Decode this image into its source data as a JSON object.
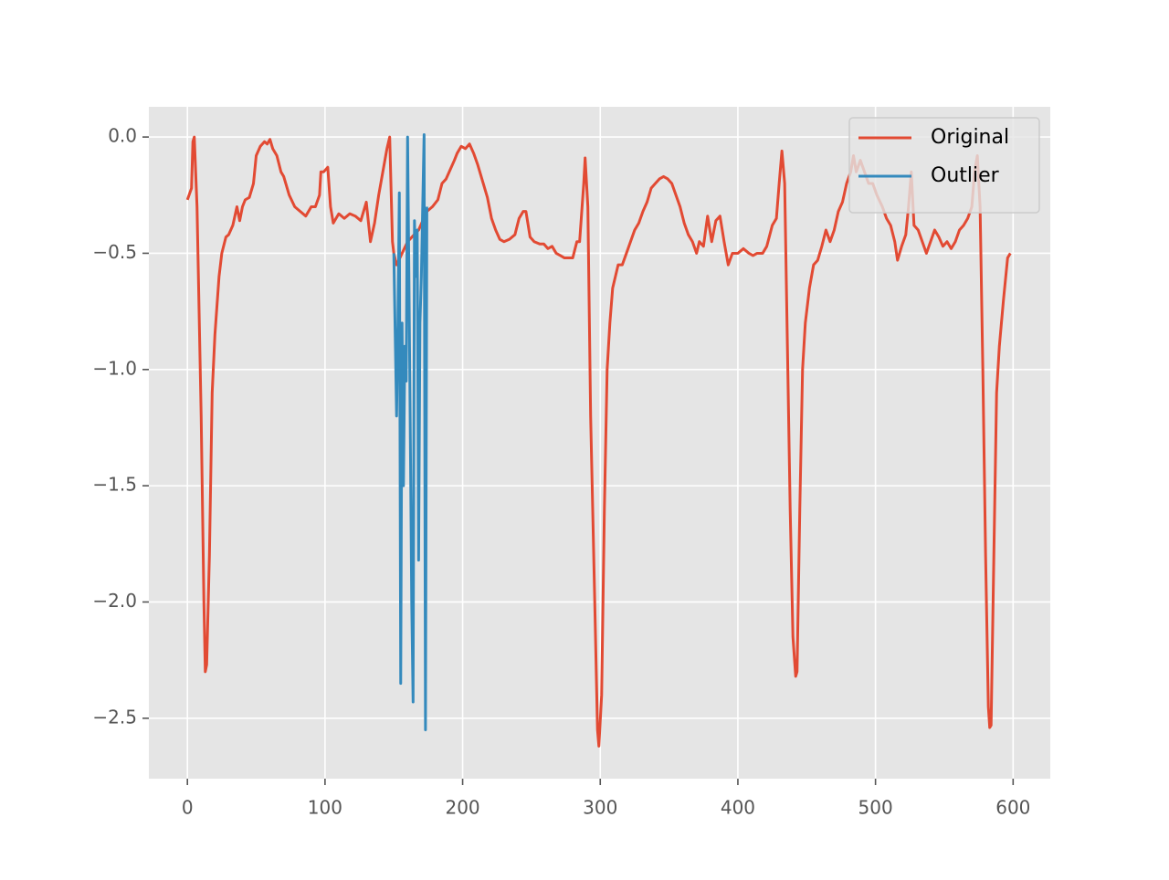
{
  "chart_data": {
    "type": "line",
    "xlim": [
      -28,
      627
    ],
    "ylim": [
      -2.76,
      0.13
    ],
    "xticks": [
      0,
      100,
      200,
      300,
      400,
      500,
      600
    ],
    "yticks": [
      {
        "value": 0,
        "label": "0.0"
      },
      {
        "value": -0.5,
        "label": "−0.5"
      },
      {
        "value": -1.0,
        "label": "−1.0"
      },
      {
        "value": -1.5,
        "label": "−1.5"
      },
      {
        "value": -2.0,
        "label": "−2.0"
      },
      {
        "value": -2.5,
        "label": "−2.5"
      }
    ],
    "grid": true,
    "legend": "upper right",
    "series": [
      {
        "name": "Original",
        "color": "#E24A33",
        "x": [
          0,
          3,
          4,
          5,
          7,
          10,
          12,
          13,
          14,
          16,
          18,
          20,
          23,
          25,
          28,
          30,
          33,
          36,
          38,
          40,
          42,
          45,
          48,
          50,
          53,
          56,
          58,
          60,
          62,
          65,
          68,
          70,
          74,
          78,
          82,
          86,
          90,
          93,
          96,
          97,
          99,
          102,
          104,
          106,
          110,
          114,
          118,
          122,
          126,
          130,
          133,
          136,
          139,
          142,
          145,
          147,
          149,
          150,
          152,
          160,
          168,
          174,
          178,
          182,
          185,
          188,
          191,
          194,
          196,
          199,
          202,
          205,
          208,
          211,
          215,
          218,
          221,
          224,
          227,
          230,
          234,
          238,
          241,
          244,
          246,
          249,
          252,
          256,
          259,
          262,
          265,
          268,
          271,
          274,
          277,
          280,
          283,
          285,
          288,
          289,
          291,
          293,
          296,
          298,
          299,
          301,
          303,
          305,
          307,
          309,
          311,
          313,
          316,
          319,
          322,
          325,
          328,
          331,
          334,
          337,
          340,
          343,
          346,
          349,
          352,
          355,
          358,
          361,
          364,
          367,
          370,
          372,
          375,
          378,
          381,
          384,
          387,
          390,
          393,
          396,
          400,
          404,
          408,
          411,
          414,
          418,
          421,
          425,
          428,
          430,
          432,
          434,
          436,
          438,
          440,
          442,
          443,
          445,
          447,
          449,
          452,
          455,
          458,
          461,
          464,
          467,
          470,
          473,
          476,
          479,
          482,
          484,
          486,
          489,
          492,
          495,
          498,
          501,
          505,
          508,
          511,
          514,
          516,
          519,
          522,
          524,
          526,
          528,
          531,
          534,
          537,
          540,
          543,
          546,
          549,
          552,
          555,
          558,
          561,
          564,
          567,
          570,
          572,
          574,
          576,
          578,
          580,
          582,
          583,
          584,
          586,
          588,
          590,
          593,
          596,
          598
        ],
        "values": [
          -0.27,
          -0.22,
          -0.02,
          0.0,
          -0.3,
          -1.2,
          -2.0,
          -2.3,
          -2.27,
          -1.8,
          -1.1,
          -0.85,
          -0.6,
          -0.5,
          -0.43,
          -0.42,
          -0.38,
          -0.3,
          -0.36,
          -0.3,
          -0.27,
          -0.26,
          -0.2,
          -0.08,
          -0.04,
          -0.02,
          -0.03,
          -0.01,
          -0.05,
          -0.08,
          -0.15,
          -0.17,
          -0.25,
          -0.3,
          -0.32,
          -0.34,
          -0.3,
          -0.3,
          -0.25,
          -0.15,
          -0.15,
          -0.13,
          -0.3,
          -0.37,
          -0.33,
          -0.35,
          -0.33,
          -0.34,
          -0.36,
          -0.28,
          -0.45,
          -0.37,
          -0.25,
          -0.15,
          -0.05,
          0.0,
          -0.45,
          -0.5,
          -0.55,
          -0.45,
          -0.4,
          -0.32,
          -0.3,
          -0.27,
          -0.2,
          -0.18,
          -0.14,
          -0.1,
          -0.07,
          -0.04,
          -0.05,
          -0.03,
          -0.07,
          -0.12,
          -0.2,
          -0.26,
          -0.35,
          -0.4,
          -0.44,
          -0.45,
          -0.44,
          -0.42,
          -0.35,
          -0.32,
          -0.32,
          -0.43,
          -0.45,
          -0.46,
          -0.46,
          -0.48,
          -0.47,
          -0.5,
          -0.51,
          -0.52,
          -0.52,
          -0.52,
          -0.45,
          -0.45,
          -0.2,
          -0.09,
          -0.3,
          -1.2,
          -2.0,
          -2.55,
          -2.62,
          -2.4,
          -1.6,
          -1.0,
          -0.8,
          -0.65,
          -0.6,
          -0.55,
          -0.55,
          -0.5,
          -0.45,
          -0.4,
          -0.37,
          -0.32,
          -0.28,
          -0.22,
          -0.2,
          -0.18,
          -0.17,
          -0.18,
          -0.2,
          -0.25,
          -0.3,
          -0.37,
          -0.42,
          -0.45,
          -0.5,
          -0.45,
          -0.47,
          -0.34,
          -0.45,
          -0.36,
          -0.34,
          -0.45,
          -0.55,
          -0.5,
          -0.5,
          -0.48,
          -0.5,
          -0.51,
          -0.5,
          -0.5,
          -0.47,
          -0.38,
          -0.35,
          -0.2,
          -0.06,
          -0.2,
          -0.9,
          -1.6,
          -2.15,
          -2.32,
          -2.3,
          -1.6,
          -1.0,
          -0.8,
          -0.65,
          -0.55,
          -0.53,
          -0.47,
          -0.4,
          -0.45,
          -0.4,
          -0.32,
          -0.28,
          -0.2,
          -0.15,
          -0.08,
          -0.15,
          -0.1,
          -0.15,
          -0.2,
          -0.2,
          -0.25,
          -0.3,
          -0.35,
          -0.38,
          -0.45,
          -0.53,
          -0.47,
          -0.42,
          -0.3,
          -0.15,
          -0.38,
          -0.4,
          -0.45,
          -0.5,
          -0.45,
          -0.4,
          -0.43,
          -0.47,
          -0.45,
          -0.48,
          -0.45,
          -0.4,
          -0.38,
          -0.35,
          -0.3,
          -0.15,
          -0.08,
          -0.3,
          -1.0,
          -1.8,
          -2.45,
          -2.54,
          -2.53,
          -1.8,
          -1.1,
          -0.9,
          -0.7,
          -0.52,
          -0.5
        ]
      },
      {
        "name": "Outlier",
        "color": "#348ABD",
        "x": [
          150,
          152,
          153,
          154,
          155,
          156,
          157,
          158,
          159,
          160,
          161,
          162,
          163,
          164,
          165,
          166,
          167,
          168,
          169,
          170,
          172,
          173,
          174
        ],
        "values": [
          -0.5,
          -1.2,
          -0.8,
          -0.24,
          -2.35,
          -0.8,
          -1.5,
          -0.9,
          -1.05,
          0.0,
          -0.62,
          -1.3,
          -2.0,
          -2.43,
          -0.36,
          -0.6,
          -0.4,
          -1.82,
          -0.8,
          -0.6,
          0.01,
          -2.55,
          -0.3
        ]
      }
    ]
  }
}
